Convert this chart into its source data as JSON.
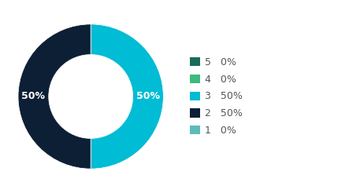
{
  "slices": [
    {
      "label": "5",
      "pct": 0,
      "color": "#1a6b5a",
      "display_pct": "0%"
    },
    {
      "label": "4",
      "pct": 0,
      "color": "#3dba7e",
      "display_pct": "0%"
    },
    {
      "label": "3",
      "pct": 50,
      "color": "#00bcd4",
      "display_pct": "50%"
    },
    {
      "label": "2",
      "pct": 50,
      "color": "#0d1f35",
      "display_pct": "50%"
    },
    {
      "label": "1",
      "pct": 0,
      "color": "#5bbcb8",
      "display_pct": "0%"
    }
  ],
  "background_color": "#ffffff",
  "text_color": "#ffffff",
  "donut_width": 0.42,
  "startangle": 90,
  "legend_label_color": "#555555",
  "figsize": [
    4.43,
    2.46
  ],
  "dpi": 100
}
